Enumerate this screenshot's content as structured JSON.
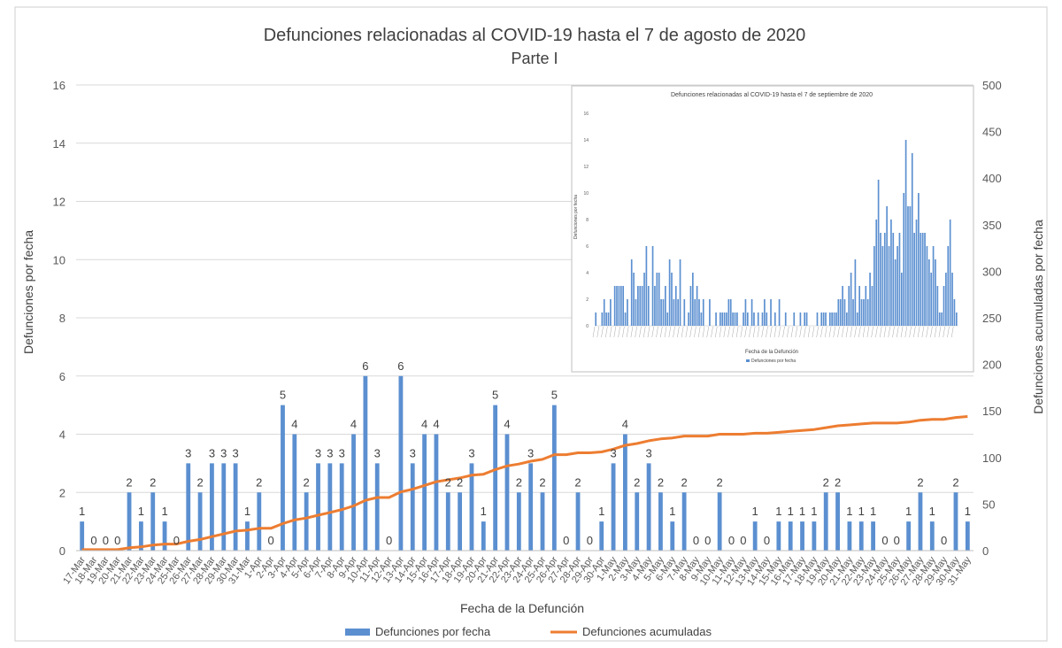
{
  "chart_data": [
    {
      "type": "bar",
      "title": "Defunciones relacionadas al COVID-19 hasta el 7 de agosto de 2020",
      "subtitle": "Parte I",
      "xlabel": "Fecha de la Defunción",
      "ylabel": "Defunciones por fecha",
      "y2label": "Defunciones acumuladas por fecha",
      "ylim": [
        0,
        16
      ],
      "yticks": [
        0,
        2,
        4,
        6,
        8,
        10,
        12,
        14,
        16
      ],
      "y2lim": [
        0,
        500
      ],
      "y2ticks": [
        0,
        50,
        100,
        150,
        200,
        250,
        300,
        350,
        400,
        450,
        500
      ],
      "grid": true,
      "legend_position": "bottom",
      "categories": [
        "17-Mar",
        "18-Mar",
        "19-Mar",
        "20-Mar",
        "21-Mar",
        "22-Mar",
        "23-Mar",
        "24-Mar",
        "25-Mar",
        "26-Mar",
        "27-Mar",
        "28-Mar",
        "29-Mar",
        "30-Mar",
        "31-Mar",
        "1-Apr",
        "2-Apr",
        "3-Apr",
        "4-Apr",
        "5-Apr",
        "6-Apr",
        "7-Apr",
        "8-Apr",
        "9-Apr",
        "10-Apr",
        "11-Apr",
        "12-Apr",
        "13-Apr",
        "14-Apr",
        "15-Apr",
        "16-Apr",
        "17-Apr",
        "18-Apr",
        "19-Apr",
        "20-Apr",
        "21-Apr",
        "22-Apr",
        "23-Apr",
        "24-Apr",
        "25-Apr",
        "26-Apr",
        "27-Apr",
        "28-Apr",
        "29-Apr",
        "30-Apr",
        "1-May",
        "2-May",
        "3-May",
        "4-May",
        "5-May",
        "6-May",
        "7-May",
        "8-May",
        "9-May",
        "10-May",
        "11-May",
        "12-May",
        "13-May",
        "14-May",
        "15-May",
        "16-May",
        "17-May",
        "18-May",
        "19-May",
        "20-May",
        "21-May",
        "22-May",
        "23-May",
        "24-May",
        "25-May",
        "26-May",
        "27-May",
        "28-May",
        "29-May",
        "30-May",
        "31-May"
      ],
      "series": [
        {
          "name": "Defunciones por fecha",
          "type": "bar",
          "axis": "left",
          "color": "#5b8fd0",
          "values": [
            1,
            0,
            0,
            0,
            2,
            1,
            2,
            1,
            0,
            3,
            2,
            3,
            3,
            3,
            1,
            2,
            0,
            5,
            4,
            2,
            3,
            3,
            3,
            4,
            6,
            3,
            0,
            6,
            3,
            4,
            4,
            2,
            2,
            3,
            1,
            5,
            4,
            2,
            3,
            2,
            5,
            0,
            2,
            0,
            1,
            3,
            4,
            2,
            3,
            2,
            1,
            2,
            0,
            0,
            2,
            0,
            0,
            1,
            0,
            1,
            1,
            1,
            1,
            2,
            2,
            1,
            1,
            1,
            0,
            0,
            1,
            2,
            1,
            0,
            2,
            1
          ]
        },
        {
          "name": "Defunciones acumuladas",
          "type": "line",
          "axis": "right",
          "color": "#ed7d31",
          "values": [
            1,
            1,
            1,
            1,
            3,
            4,
            6,
            7,
            7,
            10,
            12,
            15,
            18,
            21,
            22,
            24,
            24,
            29,
            33,
            35,
            38,
            41,
            44,
            48,
            54,
            57,
            57,
            63,
            66,
            70,
            74,
            76,
            78,
            81,
            82,
            87,
            91,
            93,
            96,
            98,
            103,
            103,
            105,
            105,
            106,
            109,
            113,
            115,
            118,
            120,
            121,
            123,
            123,
            123,
            125,
            125,
            125,
            126,
            126,
            127,
            128,
            129,
            130,
            132,
            134,
            135,
            136,
            137,
            137,
            137,
            138,
            140,
            141,
            141,
            143,
            144
          ]
        }
      ]
    },
    {
      "type": "bar",
      "title": "Defunciones relacionadas al COVID-19 hasta el 7 de septiembre de 2020",
      "xlabel": "Fecha de la Defunción",
      "ylabel": "Defunciones por fecha",
      "ylim": [
        0,
        16
      ],
      "yticks": [
        0,
        2,
        4,
        6,
        8,
        10,
        12,
        14,
        16
      ],
      "legend_position": "bottom",
      "series": [
        {
          "name": "Defunciones por fecha",
          "color": "#5b8fd0",
          "values": [
            1,
            0,
            0,
            1,
            2,
            1,
            1,
            2,
            0,
            3,
            3,
            3,
            3,
            3,
            1,
            2,
            0,
            5,
            4,
            2,
            3,
            3,
            3,
            4,
            6,
            3,
            0,
            6,
            3,
            4,
            4,
            2,
            2,
            3,
            1,
            5,
            4,
            2,
            3,
            2,
            5,
            0,
            2,
            0,
            1,
            3,
            4,
            2,
            3,
            2,
            1,
            2,
            0,
            0,
            2,
            0,
            0,
            1,
            0,
            1,
            1,
            1,
            1,
            2,
            2,
            1,
            1,
            1,
            0,
            0,
            1,
            2,
            1,
            0,
            2,
            1,
            0,
            1,
            0,
            1,
            2,
            1,
            0,
            2,
            0,
            1,
            0,
            2,
            0,
            0,
            1,
            0,
            0,
            0,
            1,
            0,
            0,
            1,
            0,
            1,
            1,
            0,
            0,
            0,
            0,
            1,
            0,
            1,
            1,
            1,
            0,
            1,
            1,
            1,
            1,
            2,
            2,
            3,
            2,
            1,
            3,
            4,
            2,
            5,
            1,
            3,
            2,
            2,
            3,
            2,
            4,
            3,
            6,
            8,
            11,
            7,
            6,
            7,
            9,
            6,
            8,
            7,
            5,
            6,
            7,
            4,
            10,
            14,
            9,
            9,
            13,
            7,
            8,
            10,
            7,
            7,
            7,
            6,
            5,
            4,
            6,
            5,
            3,
            1,
            1,
            3,
            4,
            6,
            8,
            4,
            2,
            1
          ]
        }
      ]
    }
  ]
}
